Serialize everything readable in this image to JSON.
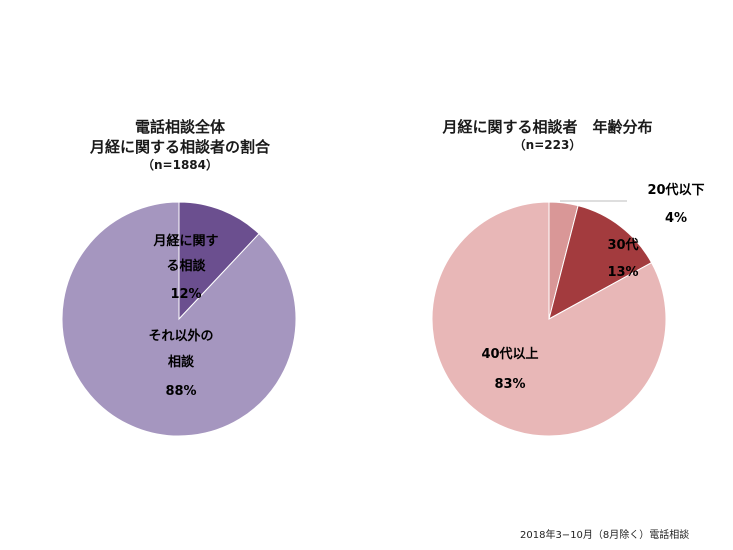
{
  "chart_data": [
    {
      "type": "pie",
      "title_lines": [
        "電話相談全体",
        "月経に関する相談者の割合"
      ],
      "subtitle": "（n=1884）",
      "slices": [
        {
          "label_lines": [
            "月経に関す",
            "る相談"
          ],
          "value": 12,
          "pct": "12%",
          "color": "#6b4f8f"
        },
        {
          "label_lines": [
            "それ以外の",
            "相談"
          ],
          "value": 88,
          "pct": "88%",
          "color": "#a596bf"
        }
      ]
    },
    {
      "type": "pie",
      "title_lines": [
        "月経に関する相談者　年齢分布"
      ],
      "subtitle": "（n=223）",
      "slices": [
        {
          "label_lines": [
            "20代以下"
          ],
          "value": 4,
          "pct": "4%",
          "color": "#d99797"
        },
        {
          "label_lines": [
            "30代"
          ],
          "value": 13,
          "pct": "13%",
          "color": "#a33b3e"
        },
        {
          "label_lines": [
            "40代以上"
          ],
          "value": 83,
          "pct": "83%",
          "color": "#e8b7b7"
        }
      ]
    }
  ],
  "footer": "2018年3−10月（8月除く）電話相談"
}
